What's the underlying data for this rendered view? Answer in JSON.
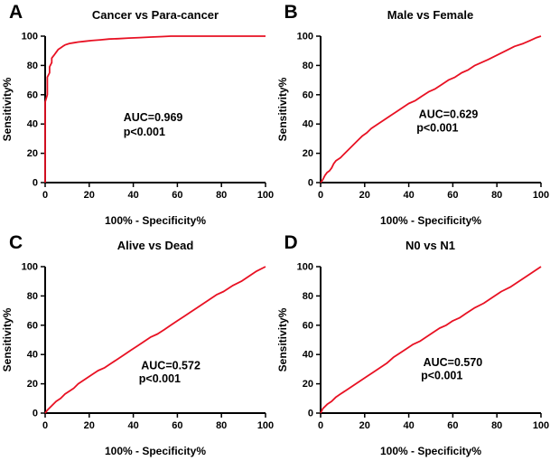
{
  "figure": {
    "background": "#ffffff",
    "axis_color": "#000000",
    "curve_color": "#e81123"
  },
  "chart_data": [
    {
      "type": "line",
      "panel_label": "A",
      "title": "Cancer vs Para-cancer",
      "xlabel": "100% - Specificity%",
      "ylabel": "Sensitivity%",
      "xlim": [
        0,
        100
      ],
      "ylim": [
        0,
        100
      ],
      "xticks": [
        0,
        20,
        40,
        60,
        80,
        100
      ],
      "yticks": [
        0,
        20,
        40,
        60,
        80,
        100
      ],
      "line_color": "#e81123",
      "axis_color": "#000000",
      "annotations": [
        {
          "text": "AUC=0.969",
          "x": 49,
          "y": 42
        },
        {
          "text": "p<0.001",
          "x": 45,
          "y": 32
        }
      ],
      "points": [
        [
          0,
          0
        ],
        [
          0,
          38
        ],
        [
          0,
          55
        ],
        [
          1,
          60
        ],
        [
          1,
          67
        ],
        [
          1,
          72
        ],
        [
          2,
          75
        ],
        [
          2,
          79
        ],
        [
          3,
          82
        ],
        [
          3,
          85
        ],
        [
          4,
          87
        ],
        [
          5,
          89
        ],
        [
          6,
          91
        ],
        [
          7,
          92
        ],
        [
          8,
          93
        ],
        [
          9,
          94
        ],
        [
          11,
          95
        ],
        [
          13,
          95.5
        ],
        [
          15,
          96
        ],
        [
          18,
          96.5
        ],
        [
          21,
          97
        ],
        [
          25,
          97.5
        ],
        [
          29,
          98
        ],
        [
          33,
          98.3
        ],
        [
          38,
          98.7
        ],
        [
          43,
          99
        ],
        [
          48,
          99.4
        ],
        [
          53,
          99.7
        ],
        [
          57,
          100
        ],
        [
          100,
          100
        ]
      ]
    },
    {
      "type": "line",
      "panel_label": "B",
      "title": "Male vs Female",
      "xlabel": "100% - Specificity%",
      "ylabel": "Sensitivity%",
      "xlim": [
        0,
        100
      ],
      "ylim": [
        0,
        100
      ],
      "xticks": [
        0,
        20,
        40,
        60,
        80,
        100
      ],
      "yticks": [
        0,
        20,
        40,
        60,
        80,
        100
      ],
      "line_color": "#e81123",
      "axis_color": "#000000",
      "annotations": [
        {
          "text": "AUC=0.629",
          "x": 58,
          "y": 44
        },
        {
          "text": "p<0.001",
          "x": 53,
          "y": 35
        }
      ],
      "points": [
        [
          0,
          0
        ],
        [
          1,
          2
        ],
        [
          2,
          5
        ],
        [
          3,
          7
        ],
        [
          4,
          8
        ],
        [
          5,
          10
        ],
        [
          6,
          13
        ],
        [
          7,
          15
        ],
        [
          9,
          17
        ],
        [
          11,
          20
        ],
        [
          13,
          23
        ],
        [
          15,
          26
        ],
        [
          17,
          29
        ],
        [
          19,
          32
        ],
        [
          21,
          34
        ],
        [
          23,
          37
        ],
        [
          26,
          40
        ],
        [
          28,
          42
        ],
        [
          31,
          45
        ],
        [
          34,
          48
        ],
        [
          37,
          51
        ],
        [
          40,
          54
        ],
        [
          43,
          56
        ],
        [
          46,
          59
        ],
        [
          49,
          62
        ],
        [
          52,
          64
        ],
        [
          55,
          67
        ],
        [
          58,
          70
        ],
        [
          61,
          72
        ],
        [
          64,
          75
        ],
        [
          67,
          77
        ],
        [
          70,
          80
        ],
        [
          73,
          82
        ],
        [
          76,
          84
        ],
        [
          80,
          87
        ],
        [
          84,
          90
        ],
        [
          88,
          93
        ],
        [
          92,
          95
        ],
        [
          95,
          97
        ],
        [
          98,
          99
        ],
        [
          100,
          100
        ]
      ]
    },
    {
      "type": "line",
      "panel_label": "C",
      "title": "Alive vs Dead",
      "xlabel": "100% - Specificity%",
      "ylabel": "Sensitivity%",
      "xlim": [
        0,
        100
      ],
      "ylim": [
        0,
        100
      ],
      "xticks": [
        0,
        20,
        40,
        60,
        80,
        100
      ],
      "yticks": [
        0,
        20,
        40,
        60,
        80,
        100
      ],
      "line_color": "#e81123",
      "axis_color": "#000000",
      "annotations": [
        {
          "text": "AUC=0.572",
          "x": 57,
          "y": 30
        },
        {
          "text": "p<0.001",
          "x": 52,
          "y": 21
        }
      ],
      "points": [
        [
          0,
          0
        ],
        [
          1,
          2
        ],
        [
          3,
          5
        ],
        [
          5,
          8
        ],
        [
          7,
          10
        ],
        [
          9,
          13
        ],
        [
          11,
          15
        ],
        [
          13,
          17
        ],
        [
          15,
          20
        ],
        [
          18,
          23
        ],
        [
          21,
          26
        ],
        [
          24,
          29
        ],
        [
          27,
          31
        ],
        [
          30,
          34
        ],
        [
          33,
          37
        ],
        [
          36,
          40
        ],
        [
          39,
          43
        ],
        [
          42,
          46
        ],
        [
          45,
          49
        ],
        [
          48,
          52
        ],
        [
          51,
          54
        ],
        [
          54,
          57
        ],
        [
          57,
          60
        ],
        [
          60,
          63
        ],
        [
          63,
          66
        ],
        [
          66,
          69
        ],
        [
          69,
          72
        ],
        [
          72,
          75
        ],
        [
          75,
          78
        ],
        [
          78,
          81
        ],
        [
          81,
          83
        ],
        [
          85,
          87
        ],
        [
          89,
          90
        ],
        [
          93,
          94
        ],
        [
          96,
          97
        ],
        [
          100,
          100
        ]
      ]
    },
    {
      "type": "line",
      "panel_label": "D",
      "title": "N0 vs N1",
      "xlabel": "100% - Specificity%",
      "ylabel": "Sensitivity%",
      "xlim": [
        0,
        100
      ],
      "ylim": [
        0,
        100
      ],
      "xticks": [
        0,
        20,
        40,
        60,
        80,
        100
      ],
      "yticks": [
        0,
        20,
        40,
        60,
        80,
        100
      ],
      "line_color": "#e81123",
      "axis_color": "#000000",
      "annotations": [
        {
          "text": "AUC=0.570",
          "x": 60,
          "y": 32
        },
        {
          "text": "p<0.001",
          "x": 55,
          "y": 23
        }
      ],
      "points": [
        [
          0,
          0
        ],
        [
          1,
          3
        ],
        [
          3,
          6
        ],
        [
          5,
          8
        ],
        [
          7,
          11
        ],
        [
          9,
          13
        ],
        [
          12,
          16
        ],
        [
          15,
          19
        ],
        [
          18,
          22
        ],
        [
          21,
          25
        ],
        [
          24,
          28
        ],
        [
          27,
          31
        ],
        [
          30,
          34
        ],
        [
          33,
          38
        ],
        [
          36,
          41
        ],
        [
          39,
          44
        ],
        [
          42,
          47
        ],
        [
          45,
          49
        ],
        [
          48,
          52
        ],
        [
          51,
          55
        ],
        [
          54,
          58
        ],
        [
          57,
          60
        ],
        [
          60,
          63
        ],
        [
          63,
          65
        ],
        [
          66,
          68
        ],
        [
          70,
          72
        ],
        [
          74,
          75
        ],
        [
          78,
          79
        ],
        [
          82,
          83
        ],
        [
          86,
          86
        ],
        [
          90,
          90
        ],
        [
          94,
          94
        ],
        [
          97,
          97
        ],
        [
          100,
          100
        ]
      ]
    }
  ]
}
